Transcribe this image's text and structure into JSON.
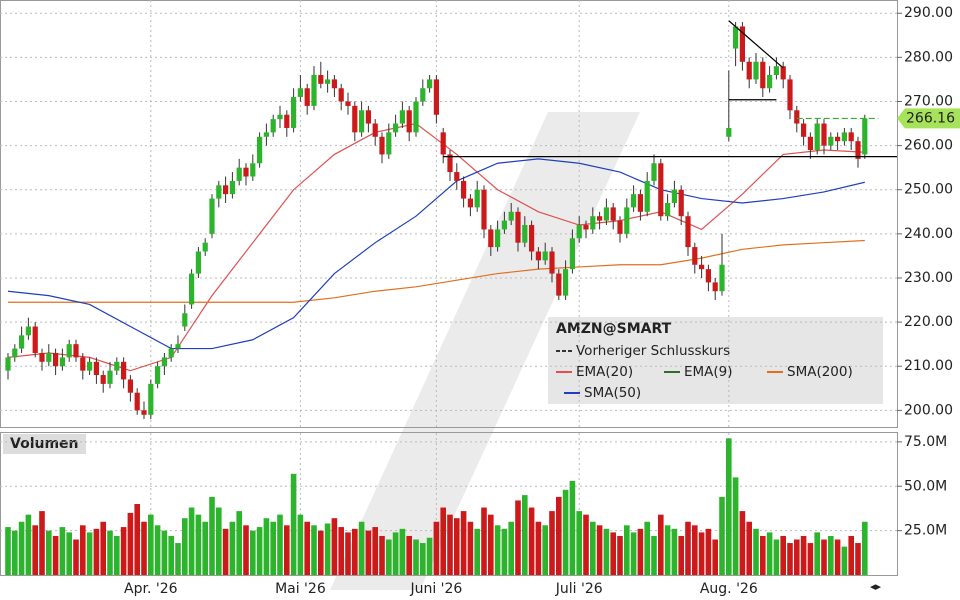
{
  "chart_data": {
    "type": "candlestick",
    "symbol": "AMZN@SMART",
    "volume_title": "Volumen",
    "xlabels": [
      {
        "index": 21,
        "label": "Apr. '26"
      },
      {
        "index": 43,
        "label": "Mai '26"
      },
      {
        "index": 63,
        "label": "Juni '26"
      },
      {
        "index": 84,
        "label": "Juli '26"
      },
      {
        "index": 106,
        "label": "Aug. '26"
      }
    ],
    "ylim": [
      196,
      293
    ],
    "yticks": [
      {
        "value": 200,
        "label": "200.00"
      },
      {
        "value": 210,
        "label": "210.00"
      },
      {
        "value": 220,
        "label": "220.00"
      },
      {
        "value": 230,
        "label": "230.00"
      },
      {
        "value": 240,
        "label": "240.00"
      },
      {
        "value": 250,
        "label": "250.00"
      },
      {
        "value": 260,
        "label": "260.00"
      },
      {
        "value": 270,
        "label": "270.00"
      },
      {
        "value": 280,
        "label": "280.00"
      },
      {
        "value": 290,
        "label": "290.00"
      }
    ],
    "vlim": [
      0,
      80
    ],
    "vticks": [
      {
        "value": 25,
        "label": "25.0M"
      },
      {
        "value": 50,
        "label": "50.0M"
      },
      {
        "value": 75,
        "label": "75.0M"
      }
    ],
    "grid": true,
    "up_color": "#2cb52c",
    "down_color": "#cc1a1a",
    "candles": [
      [
        209,
        213,
        207,
        212
      ],
      [
        212,
        215,
        211,
        214
      ],
      [
        214,
        219,
        213,
        217
      ],
      [
        217,
        221,
        216,
        219
      ],
      [
        219,
        220,
        212,
        213
      ],
      [
        213,
        214,
        209,
        211
      ],
      [
        211,
        215,
        210,
        213
      ],
      [
        213,
        214,
        208,
        210
      ],
      [
        210,
        214,
        209,
        212
      ],
      [
        212,
        216,
        211,
        215
      ],
      [
        215,
        216,
        211,
        212
      ],
      [
        212,
        213,
        207,
        209
      ],
      [
        209,
        212,
        208,
        211
      ],
      [
        211,
        212,
        206,
        208
      ],
      [
        208,
        209,
        204,
        206
      ],
      [
        206,
        211,
        205,
        209
      ],
      [
        209,
        212,
        208,
        211
      ],
      [
        211,
        212,
        205,
        207
      ],
      [
        207,
        208,
        202,
        204
      ],
      [
        204,
        205,
        199,
        200
      ],
      [
        200,
        202,
        198,
        199
      ],
      [
        199,
        207,
        198,
        206
      ],
      [
        206,
        211,
        205,
        210
      ],
      [
        210,
        213,
        208,
        212
      ],
      [
        212,
        215,
        211,
        214
      ],
      [
        214,
        217,
        213,
        215
      ],
      [
        219,
        224,
        218,
        222
      ],
      [
        224,
        232,
        223,
        231
      ],
      [
        231,
        237,
        230,
        236
      ],
      [
        236,
        239,
        235,
        238
      ],
      [
        240,
        249,
        239,
        248
      ],
      [
        248,
        252,
        246,
        251
      ],
      [
        251,
        253,
        247,
        249
      ],
      [
        249,
        254,
        248,
        252
      ],
      [
        252,
        257,
        251,
        255
      ],
      [
        255,
        256,
        251,
        253
      ],
      [
        253,
        258,
        252,
        256
      ],
      [
        256,
        263,
        255,
        262
      ],
      [
        262,
        265,
        260,
        263
      ],
      [
        263,
        267,
        262,
        266
      ],
      [
        266,
        269,
        264,
        267
      ],
      [
        267,
        268,
        262,
        264
      ],
      [
        264,
        273,
        263,
        271
      ],
      [
        271,
        276,
        270,
        273
      ],
      [
        273,
        274,
        267,
        269
      ],
      [
        269,
        278,
        268,
        276
      ],
      [
        276,
        279,
        273,
        274
      ],
      [
        274,
        277,
        272,
        275
      ],
      [
        275,
        276,
        271,
        273
      ],
      [
        273,
        274,
        268,
        270
      ],
      [
        270,
        272,
        267,
        269
      ],
      [
        269,
        270,
        261,
        263
      ],
      [
        263,
        270,
        262,
        268
      ],
      [
        268,
        269,
        263,
        265
      ],
      [
        265,
        266,
        260,
        262
      ],
      [
        262,
        263,
        256,
        258
      ],
      [
        258,
        265,
        257,
        263
      ],
      [
        263,
        267,
        262,
        265
      ],
      [
        265,
        270,
        264,
        268
      ],
      [
        268,
        269,
        261,
        263
      ],
      [
        263,
        271,
        262,
        270
      ],
      [
        270,
        275,
        269,
        273
      ],
      [
        273,
        276,
        272,
        275
      ],
      [
        275,
        276,
        265,
        267
      ],
      [
        263,
        264,
        256,
        258
      ],
      [
        258,
        259,
        252,
        254
      ],
      [
        254,
        256,
        250,
        252
      ],
      [
        252,
        253,
        246,
        248
      ],
      [
        248,
        249,
        244,
        246
      ],
      [
        246,
        252,
        245,
        250
      ],
      [
        250,
        251,
        239,
        241
      ],
      [
        241,
        242,
        235,
        237
      ],
      [
        237,
        243,
        236,
        241
      ],
      [
        241,
        245,
        240,
        243
      ],
      [
        243,
        247,
        242,
        245
      ],
      [
        245,
        246,
        236,
        238
      ],
      [
        238,
        244,
        237,
        242
      ],
      [
        242,
        243,
        234,
        236
      ],
      [
        236,
        237,
        232,
        234
      ],
      [
        234,
        238,
        233,
        236
      ],
      [
        236,
        237,
        229,
        231
      ],
      [
        231,
        232,
        225,
        226
      ],
      [
        226,
        234,
        225,
        232
      ],
      [
        232,
        241,
        231,
        239
      ],
      [
        239,
        244,
        238,
        242
      ],
      [
        242,
        243,
        239,
        241
      ],
      [
        241,
        246,
        240,
        244
      ],
      [
        244,
        245,
        241,
        243
      ],
      [
        243,
        248,
        242,
        246
      ],
      [
        246,
        247,
        241,
        243
      ],
      [
        243,
        244,
        238,
        240
      ],
      [
        240,
        248,
        239,
        246
      ],
      [
        246,
        251,
        245,
        249
      ],
      [
        249,
        250,
        243,
        245
      ],
      [
        245,
        254,
        244,
        252
      ],
      [
        252,
        258,
        251,
        256
      ],
      [
        256,
        257,
        243,
        244
      ],
      [
        244,
        249,
        243,
        247
      ],
      [
        247,
        252,
        246,
        250
      ],
      [
        250,
        251,
        242,
        244
      ],
      [
        244,
        245,
        235,
        237
      ],
      [
        237,
        238,
        231,
        233
      ],
      [
        233,
        235,
        230,
        232
      ],
      [
        232,
        233,
        227,
        229
      ],
      [
        229,
        230,
        225,
        227
      ],
      [
        227,
        240,
        226,
        233
      ],
      [
        262,
        277,
        261,
        264
      ],
      [
        282,
        288,
        278,
        287
      ],
      [
        287,
        288,
        277,
        279
      ],
      [
        279,
        280,
        273,
        275
      ],
      [
        275,
        281,
        274,
        279
      ],
      [
        279,
        280,
        271,
        273
      ],
      [
        273,
        278,
        272,
        276
      ],
      [
        276,
        280,
        275,
        278
      ],
      [
        278,
        279,
        273,
        275
      ],
      [
        275,
        276,
        266,
        268
      ],
      [
        268,
        269,
        263,
        265
      ],
      [
        265,
        266,
        260,
        262
      ],
      [
        262,
        263,
        257,
        259
      ],
      [
        259,
        266,
        258,
        265
      ],
      [
        265,
        266,
        258,
        260
      ],
      [
        260,
        263,
        259,
        262
      ],
      [
        262,
        263,
        259,
        261
      ],
      [
        261,
        264,
        260,
        263
      ],
      [
        263,
        264,
        259,
        261
      ],
      [
        261,
        262,
        255,
        257
      ],
      [
        258,
        267,
        257,
        266.16
      ]
    ],
    "volumes": [
      27,
      25,
      30,
      34,
      28,
      36,
      25,
      22,
      27,
      24,
      20,
      28,
      24,
      26,
      30,
      25,
      22,
      27,
      35,
      40,
      30,
      34,
      28,
      25,
      22,
      18,
      32,
      38,
      34,
      30,
      44,
      38,
      26,
      30,
      36,
      28,
      25,
      27,
      32,
      30,
      34,
      28,
      57,
      34,
      30,
      28,
      25,
      29,
      32,
      27,
      24,
      26,
      30,
      25,
      27,
      22,
      20,
      24,
      26,
      22,
      20,
      18,
      21,
      30,
      38,
      34,
      32,
      36,
      30,
      26,
      38,
      34,
      28,
      26,
      30,
      42,
      45,
      38,
      30,
      28,
      36,
      44,
      48,
      53,
      36,
      34,
      30,
      28,
      26,
      24,
      22,
      28,
      24,
      26,
      30,
      22,
      34,
      28,
      26,
      22,
      30,
      28,
      24,
      26,
      20,
      44,
      77,
      55,
      36,
      30,
      26,
      22,
      24,
      20,
      22,
      18,
      20,
      22,
      18,
      24,
      20,
      22,
      20,
      16,
      22,
      18,
      30
    ],
    "series": [
      {
        "name": "Vorheriger Schlusskurs",
        "color": "#333333",
        "dash": true
      },
      {
        "name": "EMA(20)",
        "color": "#e05050",
        "x": [
          0,
          6,
          12,
          18,
          24,
          30,
          36,
          42,
          48,
          54,
          60,
          66,
          72,
          78,
          84,
          90,
          96,
          102,
          108,
          114,
          120,
          126
        ],
        "values": [
          212,
          213,
          212,
          209,
          212,
          226,
          238,
          250,
          258,
          263,
          265,
          258,
          250,
          245,
          242,
          243,
          245,
          241,
          249,
          258,
          259,
          258.5
        ]
      },
      {
        "name": "EMA(9)",
        "color": "#2a6e2a"
      },
      {
        "name": "SMA(200)",
        "color": "#e07020",
        "x": [
          0,
          6,
          12,
          18,
          24,
          30,
          36,
          42,
          48,
          54,
          60,
          66,
          72,
          78,
          84,
          90,
          96,
          102,
          108,
          114,
          120,
          126
        ],
        "values": [
          224.5,
          224.5,
          224.5,
          224.5,
          224.5,
          224.5,
          224.5,
          224.5,
          225.5,
          227,
          228,
          229.5,
          231,
          232,
          232.5,
          233,
          233,
          234.5,
          236.5,
          237.5,
          238,
          238.5
        ]
      },
      {
        "name": "SMA(50)",
        "color": "#1f3fbf",
        "x": [
          0,
          6,
          12,
          18,
          24,
          30,
          36,
          42,
          48,
          54,
          60,
          66,
          72,
          78,
          84,
          90,
          96,
          102,
          108,
          114,
          120,
          126
        ],
        "values": [
          227,
          226,
          224,
          219,
          214,
          214,
          216,
          221,
          231,
          238,
          244,
          252,
          256,
          257,
          256,
          254,
          250,
          248,
          247,
          248,
          249.5,
          251.7
        ]
      }
    ],
    "drawings": [
      {
        "x": [
          106,
          114
        ],
        "y": [
          288.3,
          277.6
        ],
        "color": "#000000"
      },
      {
        "x": [
          106,
          113
        ],
        "y": [
          270.4,
          270.4
        ],
        "color": "#000000"
      },
      {
        "x": [
          64,
          131
        ],
        "y": [
          257.5,
          257.5
        ],
        "color": "#000000"
      },
      {
        "x": [
          116,
          128
        ],
        "y": [
          266.16,
          266.16
        ],
        "color": "#2cb52c",
        "dash": true
      }
    ]
  }
}
